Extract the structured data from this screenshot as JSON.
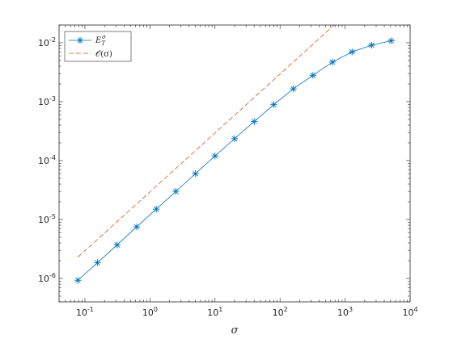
{
  "chart_data": {
    "type": "line",
    "title": "",
    "xlabel": "σ",
    "ylabel": "",
    "xscale": "log",
    "yscale": "log",
    "xlim": [
      0.04,
      10000
    ],
    "ylim": [
      4e-07,
      0.02
    ],
    "grid": false,
    "legend_position": "top-left",
    "x_ticks": [
      {
        "value": 0.1,
        "base": "10",
        "exp": "-1"
      },
      {
        "value": 1,
        "base": "10",
        "exp": "0"
      },
      {
        "value": 10,
        "base": "10",
        "exp": "1"
      },
      {
        "value": 100,
        "base": "10",
        "exp": "2"
      },
      {
        "value": 1000,
        "base": "10",
        "exp": "3"
      },
      {
        "value": 10000,
        "base": "10",
        "exp": "4"
      }
    ],
    "y_ticks": [
      {
        "value": 1e-06,
        "base": "10",
        "exp": "-6"
      },
      {
        "value": 1e-05,
        "base": "10",
        "exp": "-5"
      },
      {
        "value": 0.0001,
        "base": "10",
        "exp": "-4"
      },
      {
        "value": 0.001,
        "base": "10",
        "exp": "-3"
      },
      {
        "value": 0.01,
        "base": "10",
        "exp": "-2"
      }
    ],
    "series": [
      {
        "name": "E_T^σ",
        "color": "#0072BD",
        "style": "solid",
        "marker": "asterisk",
        "x": [
          0.078,
          0.156,
          0.3125,
          0.625,
          1.25,
          2.5,
          5,
          10,
          20,
          40,
          80,
          160,
          320,
          640,
          1280,
          2560,
          5120
        ],
        "y": [
          9.3e-07,
          1.85e-06,
          3.7e-06,
          7.5e-06,
          1.5e-05,
          3e-05,
          6e-05,
          0.00012,
          0.000235,
          0.00046,
          0.00089,
          0.00165,
          0.0028,
          0.0047,
          0.007,
          0.0091,
          0.0108
        ]
      },
      {
        "name": "𝒪(σ)",
        "color": "#D95319",
        "style": "dashed",
        "marker": "none",
        "x": [
          0.078,
          700
        ],
        "y": [
          2.3e-06,
          0.0206
        ]
      }
    ]
  }
}
